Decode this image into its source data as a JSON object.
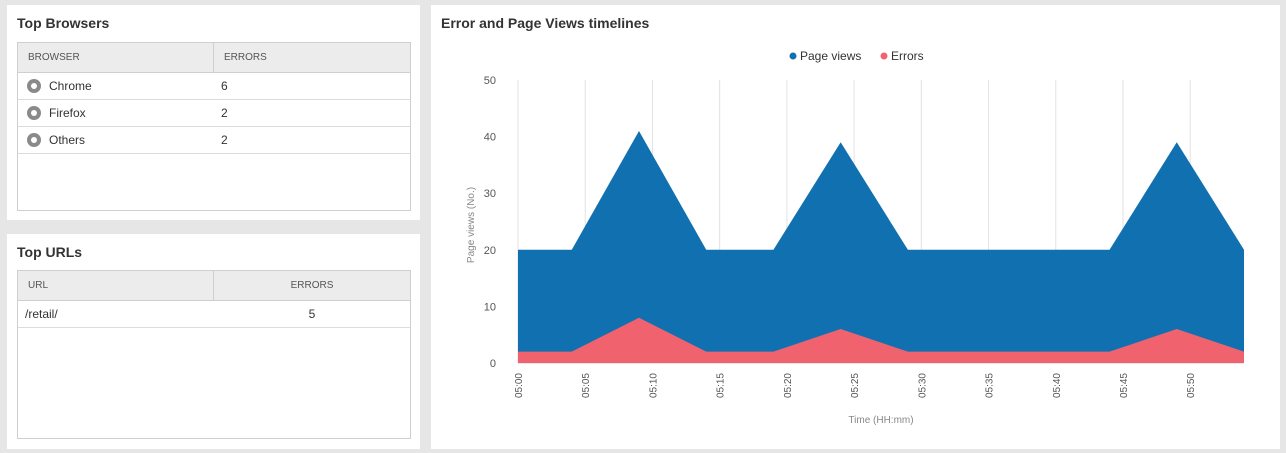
{
  "browsers_panel": {
    "title": "Top Browsers",
    "columns": [
      "BROWSER",
      "ERRORS"
    ],
    "rows": [
      {
        "browser": "Chrome",
        "errors": "6",
        "icon": "chrome-icon"
      },
      {
        "browser": "Firefox",
        "errors": "2",
        "icon": "firefox-icon"
      },
      {
        "browser": "Others",
        "errors": "2",
        "icon": "ie-icon"
      }
    ]
  },
  "urls_panel": {
    "title": "Top URLs",
    "columns": [
      "URL",
      "ERRORS"
    ],
    "rows": [
      {
        "url": "/retail/",
        "errors": "5"
      }
    ]
  },
  "timeline_panel": {
    "title": "Error and Page Views timelines"
  },
  "chart_data": {
    "type": "area",
    "title": "Error and Page Views timelines",
    "xlabel": "Time (HH:mm)",
    "ylabel": "Page views (No.)",
    "ylim": [
      0,
      50
    ],
    "yticks": [
      0,
      10,
      20,
      30,
      40,
      50
    ],
    "xticks": [
      "05:00",
      "05:05",
      "05:10",
      "05:15",
      "05:20",
      "05:25",
      "05:30",
      "05:35",
      "05:40",
      "05:45",
      "05:50"
    ],
    "x_minutes": [
      0,
      4,
      9,
      14,
      19,
      24,
      29,
      34,
      39,
      44,
      49,
      54
    ],
    "legend_position": "top-center",
    "grid": true,
    "series": [
      {
        "name": "Page views",
        "color": "#1170b0",
        "values": [
          20,
          20,
          41,
          20,
          20,
          39,
          20,
          20,
          20,
          20,
          39,
          20
        ]
      },
      {
        "name": "Errors",
        "color": "#f0636e",
        "values": [
          2,
          2,
          8,
          2,
          2,
          6,
          2,
          2,
          2,
          2,
          6,
          2
        ]
      }
    ]
  }
}
